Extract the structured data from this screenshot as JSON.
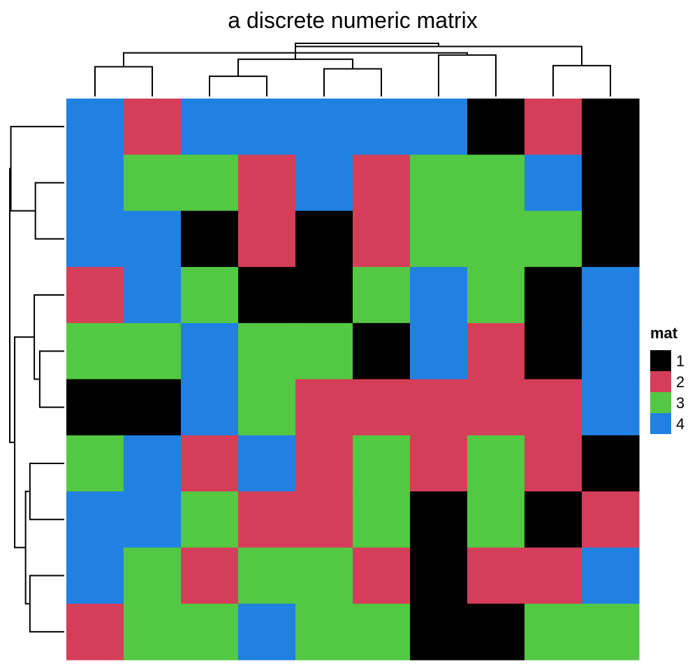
{
  "chart_data": {
    "type": "heatmap",
    "title": "a discrete numeric matrix",
    "legend": {
      "title": "mat",
      "placement": "right",
      "entries": [
        {
          "label": "1",
          "value": 1,
          "color": "#000000"
        },
        {
          "label": "2",
          "value": 2,
          "color": "#D53E59"
        },
        {
          "label": "3",
          "value": 3,
          "color": "#53C843"
        },
        {
          "label": "4",
          "value": 4,
          "color": "#2081E2"
        }
      ]
    },
    "matrix": [
      [
        4,
        2,
        4,
        4,
        4,
        4,
        4,
        1,
        2,
        1
      ],
      [
        4,
        3,
        3,
        2,
        4,
        2,
        3,
        3,
        4,
        1
      ],
      [
        4,
        4,
        1,
        2,
        1,
        2,
        3,
        3,
        3,
        1
      ],
      [
        2,
        4,
        3,
        1,
        1,
        3,
        4,
        3,
        1,
        4
      ],
      [
        3,
        3,
        4,
        3,
        3,
        1,
        4,
        2,
        1,
        4
      ],
      [
        1,
        1,
        4,
        3,
        2,
        2,
        2,
        2,
        2,
        4
      ],
      [
        3,
        4,
        2,
        4,
        2,
        3,
        2,
        3,
        2,
        1
      ],
      [
        4,
        4,
        3,
        2,
        2,
        3,
        1,
        3,
        1,
        2
      ],
      [
        4,
        3,
        2,
        3,
        3,
        2,
        1,
        2,
        2,
        4
      ],
      [
        2,
        3,
        3,
        4,
        3,
        3,
        1,
        1,
        3,
        3
      ]
    ],
    "column_dendrogram": [
      [
        2,
        3,
        0.38
      ],
      [
        4,
        5,
        0.52
      ],
      [
        1,
        0,
        0.56
      ],
      [
        9,
        8,
        0.58
      ],
      [
        10,
        11,
        0.7
      ],
      [
        6,
        7,
        0.78
      ],
      [
        15,
        12,
        0.82
      ],
      [
        16,
        13,
        0.94
      ],
      [
        17,
        14,
        1.0
      ]
    ],
    "row_dendrogram": [
      [
        4,
        5,
        0.45
      ],
      [
        1,
        2,
        0.53
      ],
      [
        10,
        3,
        0.55
      ],
      [
        8,
        9,
        0.63
      ],
      [
        6,
        7,
        0.63
      ],
      [
        14,
        13,
        0.71
      ],
      [
        12,
        15,
        0.91
      ],
      [
        11,
        0,
        0.98
      ],
      [
        17,
        16,
        1.0
      ]
    ]
  }
}
